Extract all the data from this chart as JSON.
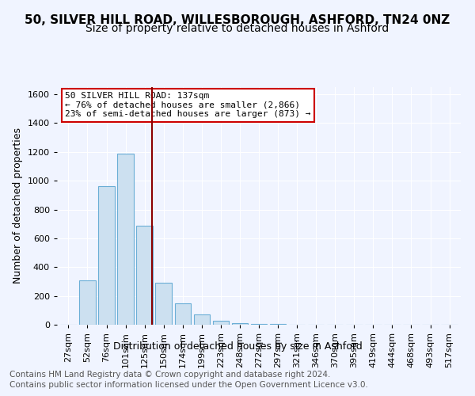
{
  "title_line1": "50, SILVER HILL ROAD, WILLESBOROUGH, ASHFORD, TN24 0NZ",
  "title_line2": "Size of property relative to detached houses in Ashford",
  "xlabel": "Distribution of detached houses by size in Ashford",
  "ylabel": "Number of detached properties",
  "categories": [
    "27sqm",
    "52sqm",
    "76sqm",
    "101sqm",
    "125sqm",
    "150sqm",
    "174sqm",
    "199sqm",
    "223sqm",
    "248sqm",
    "272sqm",
    "297sqm",
    "321sqm",
    "346sqm",
    "370sqm",
    "395sqm",
    "419sqm",
    "444sqm",
    "468sqm",
    "493sqm",
    "517sqm"
  ],
  "values": [
    0,
    310,
    960,
    1190,
    690,
    290,
    150,
    70,
    30,
    10,
    5,
    5,
    2,
    2,
    1,
    1,
    0,
    0,
    0,
    0,
    0
  ],
  "bar_color": "#cce0f0",
  "bar_edge_color": "#6baed6",
  "property_value": 137,
  "property_label": "50 SILVER HILL ROAD: 137sqm",
  "annotation_line1": "← 76% of detached houses are smaller (2,866)",
  "annotation_line2": "23% of semi-detached houses are larger (873) →",
  "vline_color": "#8b0000",
  "vline_x": 4.4,
  "annotation_box_color": "#ffffff",
  "annotation_box_edgecolor": "#cc0000",
  "ylim": [
    0,
    1650
  ],
  "yticks": [
    0,
    200,
    400,
    600,
    800,
    1000,
    1200,
    1400,
    1600
  ],
  "footer_line1": "Contains HM Land Registry data © Crown copyright and database right 2024.",
  "footer_line2": "Contains public sector information licensed under the Open Government Licence v3.0.",
  "background_color": "#f0f4ff",
  "grid_color": "#ffffff",
  "title_fontsize": 11,
  "subtitle_fontsize": 10,
  "axis_label_fontsize": 9,
  "tick_fontsize": 8,
  "footer_fontsize": 7.5
}
